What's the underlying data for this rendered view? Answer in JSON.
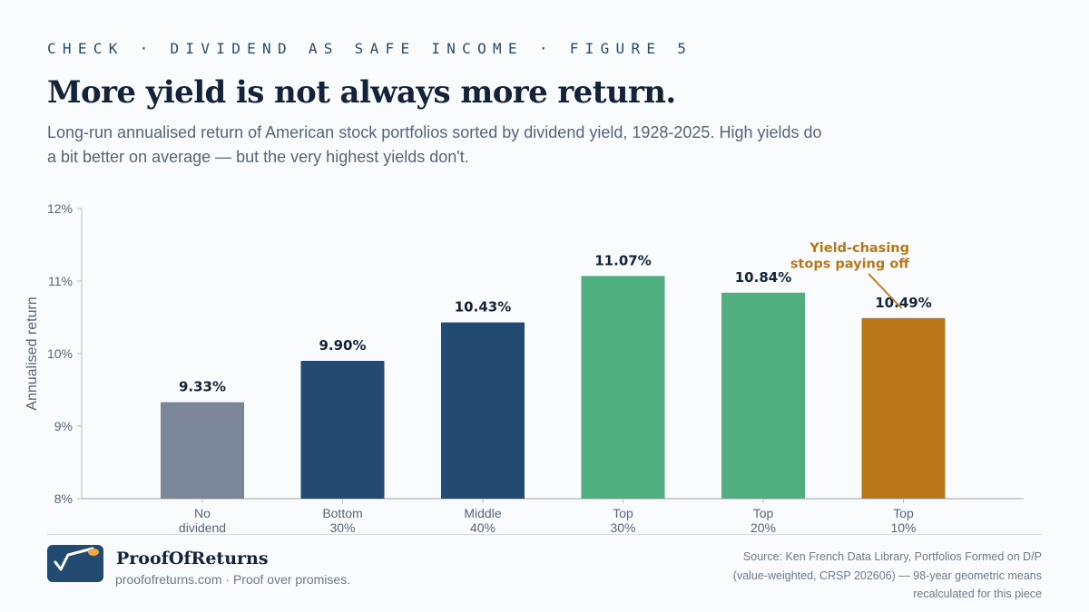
{
  "header": {
    "kicker": "CHECK · DIVIDEND AS SAFE INCOME · FIGURE 5",
    "title": "More yield is not always more return.",
    "subtitle": "Long-run annualised return of American stock portfolios sorted by dividend yield, 1928-2025. High yields do a bit better on average — but the very highest yields don't."
  },
  "chart_data": {
    "type": "bar",
    "categories": [
      [
        "No",
        "dividend"
      ],
      [
        "Bottom",
        "30%"
      ],
      [
        "Middle",
        "40%"
      ],
      [
        "Top",
        "30%"
      ],
      [
        "Top",
        "20%"
      ],
      [
        "Top",
        "10%"
      ]
    ],
    "values": [
      9.33,
      9.9,
      10.43,
      11.07,
      10.84,
      10.49
    ],
    "value_labels": [
      "9.33%",
      "9.90%",
      "10.43%",
      "11.07%",
      "10.84%",
      "10.49%"
    ],
    "colors": [
      "#7b8698",
      "#234a70",
      "#234a70",
      "#4faf7e",
      "#4faf7e",
      "#b8781a"
    ],
    "ylabel": "Annualised return",
    "ylim": [
      8,
      12
    ],
    "yticks": [
      8,
      9,
      10,
      11,
      12
    ],
    "ytick_labels": [
      "8%",
      "9%",
      "10%",
      "11%",
      "12%"
    ],
    "grid": false,
    "annotation": {
      "lines": [
        "Yield-chasing",
        "stops paying off"
      ],
      "target_category_index": 5,
      "color": "#b8781a"
    }
  },
  "footer": {
    "brand": "ProofOfReturns",
    "tagline": "proofofreturns.com · Proof over promises.",
    "source_lines": [
      "Source: Ken French Data Library, Portfolios Formed on D/P",
      "(value-weighted, CRSP 202606) — 98-year geometric means",
      "recalculated for this piece"
    ]
  },
  "colors": {
    "navy": "#234a70",
    "green": "#4faf7e",
    "gray": "#7b8698",
    "amber": "#b8781a",
    "accent_dot": "#f0a841"
  },
  "icons": {
    "logo": "checkmark-trend-icon"
  }
}
